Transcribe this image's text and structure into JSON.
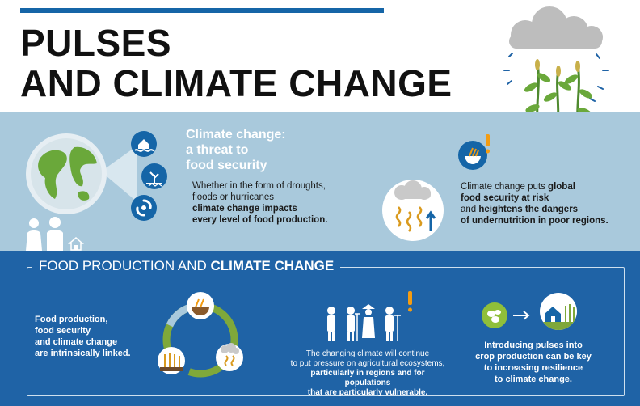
{
  "title": {
    "line1": "PULSES",
    "line2": "AND CLIMATE CHANGE"
  },
  "threat": {
    "heading_line1": "Climate change:",
    "heading_line2": "a threat to",
    "heading_line3": "food security",
    "body_line1": "Whether in the form of droughts,",
    "body_line2": "floods or hurricanes",
    "body_bold_line3": "climate change impacts",
    "body_bold_line4": "every level of food production."
  },
  "risk": {
    "line1_pre": "Climate change puts ",
    "line1_bold": "global",
    "line2_bold": "food security at risk",
    "line3_pre": "and ",
    "line3_bold": "heightens the dangers",
    "line4_bold": "of undernutrition in poor regions."
  },
  "food_production": {
    "title_regular": "FOOD PRODUCTION AND ",
    "title_bold": "CLIMATE CHANGE",
    "left_line1": "Food production,",
    "left_line2": "food security",
    "left_line3": "and climate change",
    "left_line4": "are intrinsically linked.",
    "center_line1": "The changing climate will continue",
    "center_line2": "to put pressure on agricultural ecosystems,",
    "center_bold_line3": "particularly in regions and for populations",
    "center_bold_line4": "that are particularly vulnerable.",
    "right_line1": "Introducing pulses into",
    "right_line2": "crop production can be key",
    "right_line3": "to increasing resilience",
    "right_line4": "to climate change."
  },
  "icons": {
    "header": [
      "cloud-icon",
      "plant-icon"
    ],
    "threat": [
      "globe-icon",
      "flood-house-icon",
      "drought-tree-icon",
      "hurricane-icon",
      "people-icon",
      "house-icon"
    ],
    "risk": [
      "rising-temperature-icon",
      "food-bowl-icon",
      "exclamation-icon"
    ],
    "food_production": [
      "production-cycle-icon",
      "farmers-icon",
      "exclamation-icon",
      "pulse-icon",
      "arrow-right-icon",
      "farm-house-icon"
    ]
  },
  "colors": {
    "blue_band": "#a9c9dc",
    "dark_blue": "#1f63a6",
    "accent_orange": "#f39c12",
    "icon_blue": "#1565a7"
  }
}
